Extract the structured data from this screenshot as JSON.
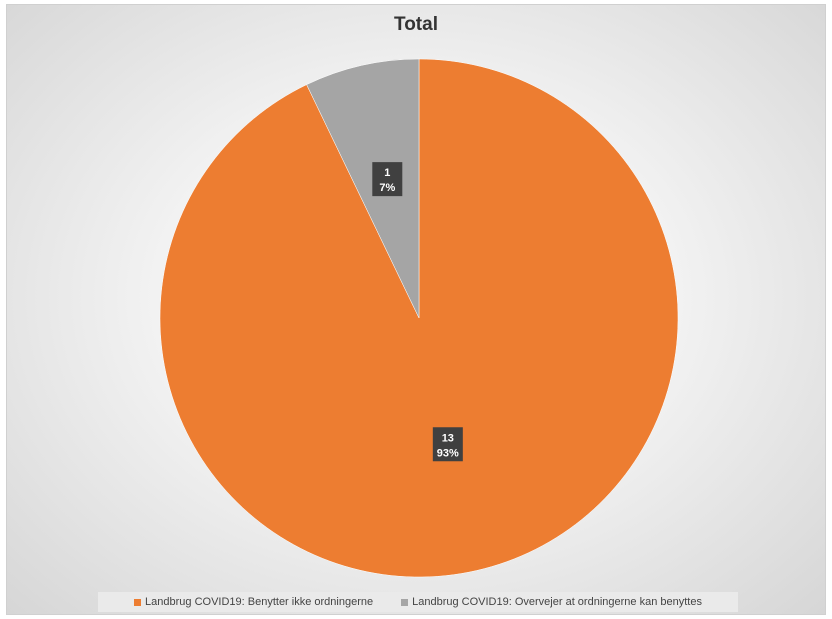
{
  "chart_data": {
    "type": "pie",
    "title": "Total",
    "slices": [
      {
        "name": "Landbrug COVID19: Benytter ikke ordningerne",
        "value": 13,
        "percent_label": "93%",
        "color": "#ED7D31"
      },
      {
        "name": "Landbrug COVID19: Overvejer at ordningerne kan benyttes",
        "value": 1,
        "percent_label": "7%",
        "color": "#A5A5A5"
      }
    ],
    "start_angle_deg": 0,
    "direction": "clockwise",
    "legend_position": "bottom",
    "data_labels": true
  }
}
